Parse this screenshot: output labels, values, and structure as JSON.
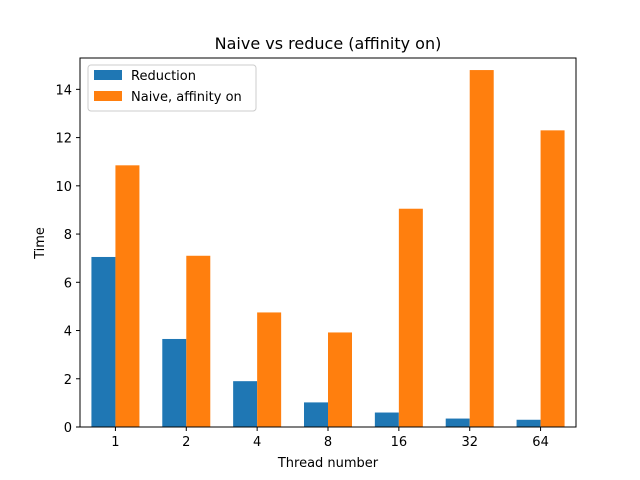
{
  "chart_data": {
    "type": "bar",
    "title": "Naive vs reduce (affinity on)",
    "xlabel": "Thread number",
    "ylabel": "Time",
    "categories": [
      "1",
      "2",
      "4",
      "8",
      "16",
      "32",
      "64"
    ],
    "series": [
      {
        "name": "Reduction",
        "color": "#1f77b4",
        "values": [
          7.05,
          3.65,
          1.9,
          1.02,
          0.6,
          0.35,
          0.3
        ]
      },
      {
        "name": "Naive, affinity on",
        "color": "#ff7f0e",
        "values": [
          10.85,
          7.1,
          4.75,
          3.92,
          9.05,
          14.8,
          12.3
        ]
      }
    ],
    "ylim": [
      0,
      15.3
    ],
    "yticks": [
      "0",
      "2",
      "4",
      "6",
      "8",
      "10",
      "12",
      "14"
    ],
    "grid": false,
    "legend_position": "top-left"
  }
}
